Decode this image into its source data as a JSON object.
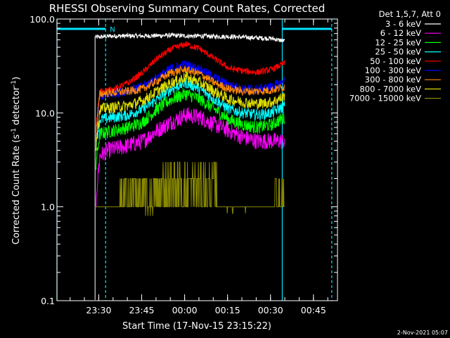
{
  "chart_data": {
    "type": "line",
    "title": "RHESSI Observing Summary Count Rates, Corrected",
    "xlabel": "Start Time (17-Nov-15 23:15:22)",
    "ylabel_main": "Corrected Count Rate (s",
    "ylabel_sup1": "-1",
    "ylabel_mid": " detector",
    "ylabel_sup2": "-1",
    "ylabel_end": ")",
    "y_scale": "log",
    "ylim": [
      0.1,
      100
    ],
    "xlim_minutes_from_start": [
      0,
      98
    ],
    "y_ticks": [
      {
        "value": 100,
        "label": "100.0"
      },
      {
        "value": 10,
        "label": "10.0"
      },
      {
        "value": 1,
        "label": "1.0"
      },
      {
        "value": 0.1,
        "label": "0.1"
      }
    ],
    "x_ticks": [
      {
        "minute": 14.6,
        "label": "23:30"
      },
      {
        "minute": 29.6,
        "label": "23:45"
      },
      {
        "minute": 44.6,
        "label": "00:00"
      },
      {
        "minute": 59.6,
        "label": "00:15"
      },
      {
        "minute": 74.6,
        "label": "00:30"
      },
      {
        "minute": 89.6,
        "label": "00:45"
      }
    ],
    "legend_header": "Det 1,5,7, Att 0",
    "legend_position": "top-right",
    "data_start_minute": 13.3,
    "data_end_minute": 79.6,
    "series": [
      {
        "name": "3 - 6 keV",
        "color": "#ffffff",
        "x": [
          13.3,
          20,
          30,
          40,
          45,
          50,
          55,
          60,
          65,
          70,
          75,
          79.6
        ],
        "y": [
          64,
          66,
          66,
          67,
          66,
          66,
          65,
          65,
          64,
          63,
          62,
          58
        ]
      },
      {
        "name": "6 - 12 keV",
        "color": "#ff00ff",
        "x": [
          13.3,
          15,
          18,
          25,
          30,
          35,
          40,
          45,
          50,
          55,
          60,
          65,
          70,
          75,
          79.6
        ],
        "y": [
          1.0,
          3.5,
          4.0,
          4.5,
          5.0,
          6.5,
          8.0,
          9.5,
          9.0,
          7.5,
          6.5,
          5.5,
          5.0,
          5.0,
          5.0
        ]
      },
      {
        "name": "12 - 25 keV",
        "color": "#00ff00",
        "x": [
          13.3,
          15,
          20,
          25,
          30,
          35,
          40,
          45,
          50,
          55,
          60,
          65,
          70,
          75,
          79.6
        ],
        "y": [
          2.5,
          6.0,
          6.5,
          7.0,
          8.0,
          11.0,
          14.0,
          16.0,
          14.0,
          11.0,
          8.5,
          7.5,
          7.0,
          7.5,
          9.0
        ]
      },
      {
        "name": "25 - 50 keV",
        "color": "#00ffff",
        "x": [
          13.3,
          15,
          20,
          25,
          30,
          35,
          40,
          45,
          50,
          55,
          60,
          65,
          70,
          75,
          79.6
        ],
        "y": [
          4.0,
          8.5,
          9.0,
          9.5,
          11.0,
          14.0,
          18.0,
          21.0,
          18.0,
          14.0,
          11.0,
          10.0,
          9.5,
          10.0,
          12.0
        ]
      },
      {
        "name": "50 - 100 keV",
        "color": "#ff0000",
        "x": [
          13.3,
          15,
          20,
          25,
          30,
          35,
          40,
          45,
          50,
          55,
          60,
          65,
          70,
          75,
          79.6
        ],
        "y": [
          6.0,
          17.0,
          18.0,
          21.0,
          27.0,
          38.0,
          48.0,
          54.0,
          48.0,
          38.0,
          30.0,
          28.0,
          27.0,
          29.0,
          34.0
        ]
      },
      {
        "name": "100 - 300 keV",
        "color": "#0000ff",
        "x": [
          13.3,
          15,
          20,
          25,
          30,
          35,
          40,
          45,
          50,
          55,
          60,
          65,
          70,
          75,
          79.6
        ],
        "y": [
          5.0,
          15.0,
          16.0,
          17.5,
          19.0,
          24.0,
          30.0,
          33.0,
          29.0,
          24.0,
          20.0,
          18.0,
          18.0,
          19.0,
          22.0
        ]
      },
      {
        "name": "300 - 800 keV",
        "color": "#ff8800",
        "x": [
          13.3,
          15,
          20,
          25,
          30,
          35,
          40,
          45,
          50,
          55,
          60,
          65,
          70,
          75,
          79.6
        ],
        "y": [
          5.0,
          16.0,
          16.5,
          17.0,
          18.0,
          22.0,
          27.0,
          29.0,
          26.0,
          21.0,
          18.0,
          17.0,
          17.0,
          17.5,
          19.0
        ]
      },
      {
        "name": "800 - 7000 keV",
        "color": "#dddd00",
        "x": [
          13.3,
          15,
          20,
          25,
          30,
          35,
          40,
          45,
          50,
          55,
          60,
          65,
          70,
          75,
          79.6
        ],
        "y": [
          4.0,
          11.0,
          11.5,
          12.0,
          13.5,
          17.0,
          21.0,
          24.0,
          21.0,
          17.0,
          14.0,
          13.0,
          12.5,
          13.0,
          15.0
        ]
      },
      {
        "name": "7000 - 15000 keV",
        "color": "#888800",
        "x": [
          13.3,
          20,
          28,
          32,
          36,
          40,
          45,
          50,
          55,
          60,
          65,
          70,
          75,
          79.6
        ],
        "y": [
          1.0,
          1.0,
          1.0,
          1.0,
          1.3,
          1.8,
          2.2,
          1.8,
          1.4,
          1.0,
          1.0,
          1.0,
          1.0,
          1.4
        ]
      }
    ],
    "annotations": {
      "spacecraft_night_marker": "N",
      "vertical_markers_minutes": [
        {
          "minute": 0,
          "style": "solid"
        },
        {
          "minute": 17.0,
          "style": "dashed"
        },
        {
          "minute": 78.7,
          "style": "solid"
        },
        {
          "minute": 96.0,
          "style": "dashed"
        }
      ],
      "marker_color": "#00e5ff"
    },
    "grid": false
  },
  "footer_timestamp": "2-Nov-2021 05:07"
}
